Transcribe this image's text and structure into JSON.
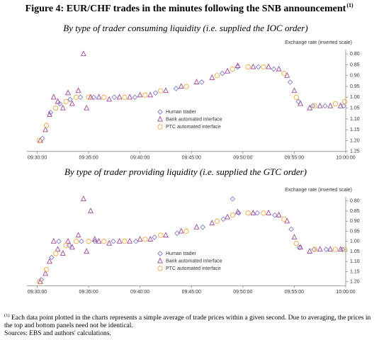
{
  "title": "Figure 4: EUR/CHF trades in the minutes following the SNB announcement",
  "title_note": "(1)",
  "footnote_marker": "(1)",
  "footnote": "Each data point plotted in the charts represents a simple average of trade prices within a given second. Due to averaging, the prices in the top and bottom panels need not be identical.",
  "source": "Sources: EBS and authors' calculations.",
  "chart_data": [
    {
      "type": "scatter",
      "subtitle": "By type of trader consuming liquidity (i.e. supplied the IOC order)",
      "y_label": "Exchange rate (inverted scale)",
      "y_inverted": true,
      "legend": "bottom",
      "xlim": [
        -1,
        30
      ],
      "xticks": [
        {
          "value": 0,
          "label": "09:30:00"
        },
        {
          "value": 5,
          "label": "09:35:00"
        },
        {
          "value": 10,
          "label": "09:40:00"
        },
        {
          "value": 15,
          "label": "09:45:00"
        },
        {
          "value": 20,
          "label": "09:50:00"
        },
        {
          "value": 25,
          "label": "09:55:00"
        },
        {
          "value": 30,
          "label": "10:00:00"
        }
      ],
      "ylim": [
        0.78,
        1.25
      ],
      "yticks": [
        {
          "value": 0.8,
          "label": "0.80"
        },
        {
          "value": 0.85,
          "label": "0.85"
        },
        {
          "value": 0.9,
          "label": "0.90"
        },
        {
          "value": 0.95,
          "label": "0.95"
        },
        {
          "value": 1,
          "label": "1.00"
        },
        {
          "value": 1.05,
          "label": "1.05"
        },
        {
          "value": 1.1,
          "label": "1.10"
        },
        {
          "value": 1.15,
          "label": "1.15"
        },
        {
          "value": 1.2,
          "label": "1.20"
        },
        {
          "value": 1.25,
          "label": "1.25"
        }
      ],
      "series": [
        {
          "name": "Human trader",
          "color": "#7f7fcf",
          "marker": "diamond",
          "x": [
            0.5,
            1.3,
            2.2,
            3.2,
            4.2,
            5.5,
            7.5,
            9.5,
            11.5,
            13.5,
            16.0,
            18.0,
            19.5,
            21.5,
            23.0,
            24.6,
            25.4,
            26.8,
            28.0,
            29.8
          ],
          "values": [
            1.19,
            1.07,
            1.03,
            1.01,
            1.0,
            1.0,
            1.0,
            1.0,
            0.98,
            0.96,
            0.93,
            0.89,
            0.86,
            0.86,
            0.87,
            0.93,
            1.02,
            1.04,
            1.04,
            1.04
          ]
        },
        {
          "name": "Bank automated interface",
          "color": "#a0469a",
          "marker": "triangle",
          "x": [
            0.3,
            0.8,
            1.2,
            1.6,
            2.0,
            2.5,
            3.0,
            3.4,
            4.0,
            4.5,
            4.8,
            5.2,
            6.0,
            7.0,
            8.0,
            9.0,
            10.0,
            11.0,
            12.5,
            14.0,
            15.5,
            17.0,
            18.5,
            19.5,
            21.0,
            22.5,
            23.5,
            24.3,
            25.0,
            25.6,
            26.5,
            27.5,
            28.5,
            29.5
          ],
          "values": [
            1.2,
            1.15,
            1.08,
            1.0,
            1.02,
            1.05,
            0.98,
            1.03,
            0.97,
            0.8,
            1.05,
            1.0,
            1.0,
            1.01,
            1.0,
            1.0,
            0.99,
            0.99,
            0.97,
            0.95,
            0.93,
            0.91,
            0.88,
            0.855,
            0.86,
            0.86,
            0.87,
            0.9,
            0.97,
            1.03,
            1.05,
            1.04,
            1.04,
            1.04
          ]
        },
        {
          "name": "PTC automated interface",
          "color": "#f2a73d",
          "marker": "circle",
          "x": [
            0.2,
            0.9,
            1.8,
            2.8,
            3.8,
            5.0,
            6.5,
            8.5,
            10.5,
            12.0,
            14.5,
            17.5,
            19.0,
            20.5,
            22.0,
            24.0,
            25.2,
            27.0,
            29.0,
            29.9
          ],
          "values": [
            1.2,
            1.13,
            1.05,
            1.02,
            1.0,
            1.0,
            1.0,
            1.0,
            0.99,
            0.97,
            0.95,
            0.9,
            0.87,
            0.86,
            0.86,
            0.89,
            1.0,
            1.04,
            1.03,
            1.02
          ]
        }
      ]
    },
    {
      "type": "scatter",
      "subtitle": "By type of trader providing liquidity (i.e. supplied the GTC order)",
      "y_label": "Exchange rate (inverted scale)",
      "y_inverted": true,
      "legend": "bottom",
      "xlim": [
        -1,
        30
      ],
      "xticks": [
        {
          "value": 0,
          "label": "09:30:00"
        },
        {
          "value": 5,
          "label": "09:35:00"
        },
        {
          "value": 10,
          "label": "09:40:00"
        },
        {
          "value": 15,
          "label": "09:45:00"
        },
        {
          "value": 20,
          "label": "09:50:00"
        },
        {
          "value": 25,
          "label": "09:55:00"
        },
        {
          "value": 30,
          "label": "10:00:00"
        }
      ],
      "ylim": [
        0.78,
        1.22
      ],
      "yticks": [
        {
          "value": 0.8,
          "label": "0.80"
        },
        {
          "value": 0.85,
          "label": "0.85"
        },
        {
          "value": 0.9,
          "label": "0.90"
        },
        {
          "value": 0.95,
          "label": "0.95"
        },
        {
          "value": 1,
          "label": "1.00"
        },
        {
          "value": 1.05,
          "label": "1.05"
        },
        {
          "value": 1.1,
          "label": "1.10"
        },
        {
          "value": 1.15,
          "label": "1.15"
        },
        {
          "value": 1.2,
          "label": "1.20"
        }
      ],
      "series": [
        {
          "name": "Human trader",
          "color": "#7f7fcf",
          "marker": "diamond",
          "x": [
            0.4,
            1.4,
            2.1,
            3.1,
            4.3,
            5.6,
            7.4,
            9.6,
            11.4,
            13.6,
            16.1,
            18.1,
            19.0,
            19.6,
            21.4,
            23.1,
            24.7,
            25.5,
            26.9,
            28.1,
            29.7
          ],
          "values": [
            1.19,
            1.08,
            1.0,
            1.02,
            1.0,
            1.0,
            1.0,
            1.0,
            0.98,
            0.96,
            0.93,
            0.89,
            0.79,
            0.86,
            0.86,
            0.87,
            0.94,
            1.03,
            1.04,
            1.04,
            1.04
          ]
        },
        {
          "name": "Bank automated interface",
          "color": "#a0469a",
          "marker": "triangle",
          "x": [
            0.3,
            0.8,
            1.2,
            1.6,
            2.0,
            2.5,
            3.0,
            3.4,
            4.0,
            4.5,
            4.8,
            5.2,
            5.6,
            6.0,
            7.0,
            8.0,
            9.0,
            10.0,
            11.0,
            12.5,
            14.0,
            15.5,
            17.0,
            18.5,
            19.5,
            21.0,
            22.5,
            23.5,
            24.3,
            25.0,
            25.6,
            26.5,
            27.5,
            28.5,
            29.5
          ],
          "values": [
            1.2,
            1.16,
            1.1,
            1.0,
            1.04,
            1.06,
            1.0,
            1.03,
            0.97,
            0.79,
            1.05,
            0.85,
            0.99,
            1.0,
            1.01,
            1.0,
            1.0,
            0.99,
            0.99,
            0.97,
            0.95,
            0.93,
            0.91,
            0.88,
            0.855,
            0.86,
            0.86,
            0.87,
            0.9,
            0.98,
            1.03,
            1.05,
            1.04,
            1.04,
            1.04
          ]
        },
        {
          "name": "PTC automated interface",
          "color": "#f2a73d",
          "marker": "circle",
          "x": [
            0.2,
            0.9,
            1.8,
            2.8,
            3.8,
            5.0,
            6.5,
            8.5,
            10.5,
            12.0,
            14.5,
            17.5,
            19.0,
            20.5,
            22.0,
            24.0,
            25.2,
            27.0,
            29.0,
            29.9
          ],
          "values": [
            1.2,
            1.14,
            1.06,
            1.02,
            1.0,
            1.0,
            1.0,
            1.0,
            0.99,
            0.97,
            0.95,
            0.9,
            0.87,
            0.86,
            0.86,
            0.89,
            1.01,
            1.04,
            1.04,
            1.04
          ]
        }
      ]
    }
  ]
}
